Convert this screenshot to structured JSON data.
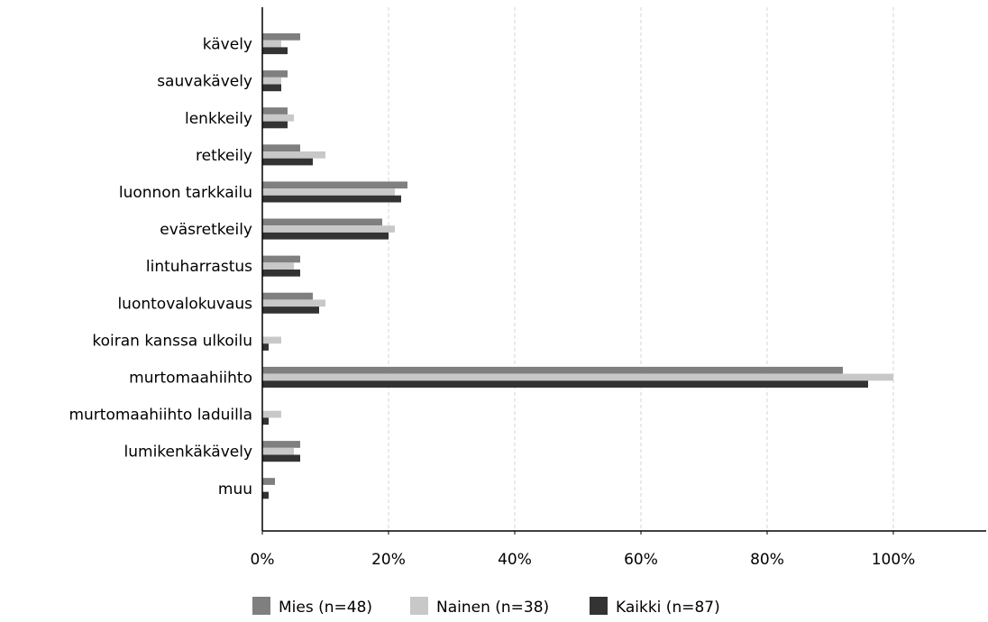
{
  "chart_data": {
    "type": "bar",
    "orientation": "horizontal",
    "categories": [
      "kävely",
      "sauvakävely",
      "lenkkeily",
      "retkeily",
      "luonnon tarkkailu",
      "eväsretkeily",
      "lintuharrastus",
      "luontovalokuvaus",
      "koiran kanssa ulkoilu",
      "murtomaahiihto",
      "murtomaahiihto laduilla",
      "lumikenkäkävely",
      "muu"
    ],
    "series": [
      {
        "name": "Mies (n=48)",
        "color": "#7f7f7f",
        "values": [
          6,
          4,
          4,
          6,
          23,
          19,
          6,
          8,
          0,
          92,
          0,
          6,
          2
        ]
      },
      {
        "name": "Nainen (n=38)",
        "color": "#c8c8c8",
        "values": [
          3,
          3,
          5,
          10,
          21,
          21,
          5,
          10,
          3,
          100,
          3,
          5,
          0
        ]
      },
      {
        "name": "Kaikki (n=87)",
        "color": "#333333",
        "values": [
          4,
          3,
          4,
          8,
          22,
          20,
          6,
          9,
          1,
          96,
          1,
          6,
          1
        ]
      }
    ],
    "xlim": [
      0,
      115
    ],
    "xticks": [
      0,
      20,
      40,
      60,
      80,
      100
    ],
    "xtick_labels": [
      "0%",
      "20%",
      "40%",
      "60%",
      "80%",
      "100%"
    ],
    "grid": "vertical dashed",
    "legend_position": "bottom"
  }
}
